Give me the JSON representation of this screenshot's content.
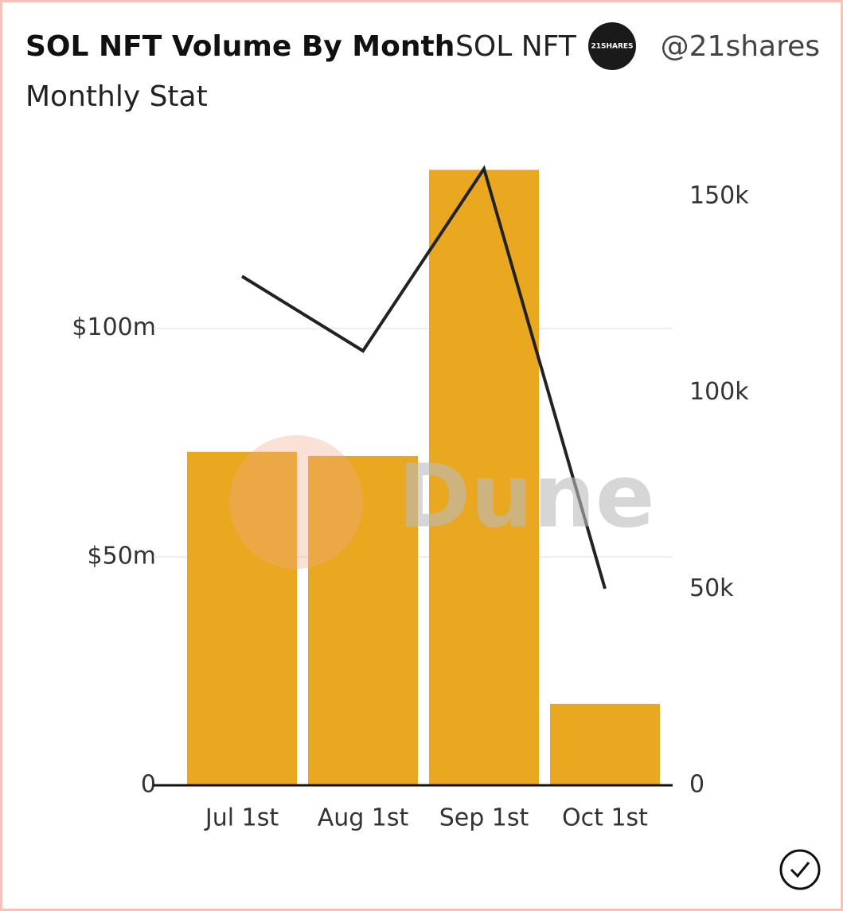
{
  "header": {
    "title": "SOL NFT Volume By Month",
    "source": "SOL NFT",
    "logo": "21SHARES",
    "handle": "@21shares",
    "subtitle": "Monthly Stat"
  },
  "watermark": "Dune",
  "chart_data": {
    "type": "bar-line",
    "categories": [
      "Jul 1st",
      "Aug 1st",
      "Sep 1st",
      "Oct 1st"
    ],
    "series": [
      {
        "type": "bar",
        "color": "#e9a820",
        "values": [
          73.0,
          72.1,
          134.7,
          17.8
        ]
      },
      {
        "type": "line",
        "axis": "y2",
        "color": "#222222",
        "values": [
          129700,
          110700,
          157100,
          50100
        ]
      }
    ],
    "ylim": [
      0,
      140
    ],
    "yticks": [
      0,
      {
        "value": 50,
        "label": "$50m"
      },
      {
        "value": 100,
        "label": "$100m"
      }
    ],
    "y2lim": [
      0,
      163000
    ],
    "y2ticks": [
      0,
      {
        "value": 50000,
        "label": "50k"
      },
      {
        "value": 100000,
        "label": "100k"
      },
      {
        "value": 150000,
        "label": "150k"
      }
    ],
    "grid": true
  }
}
